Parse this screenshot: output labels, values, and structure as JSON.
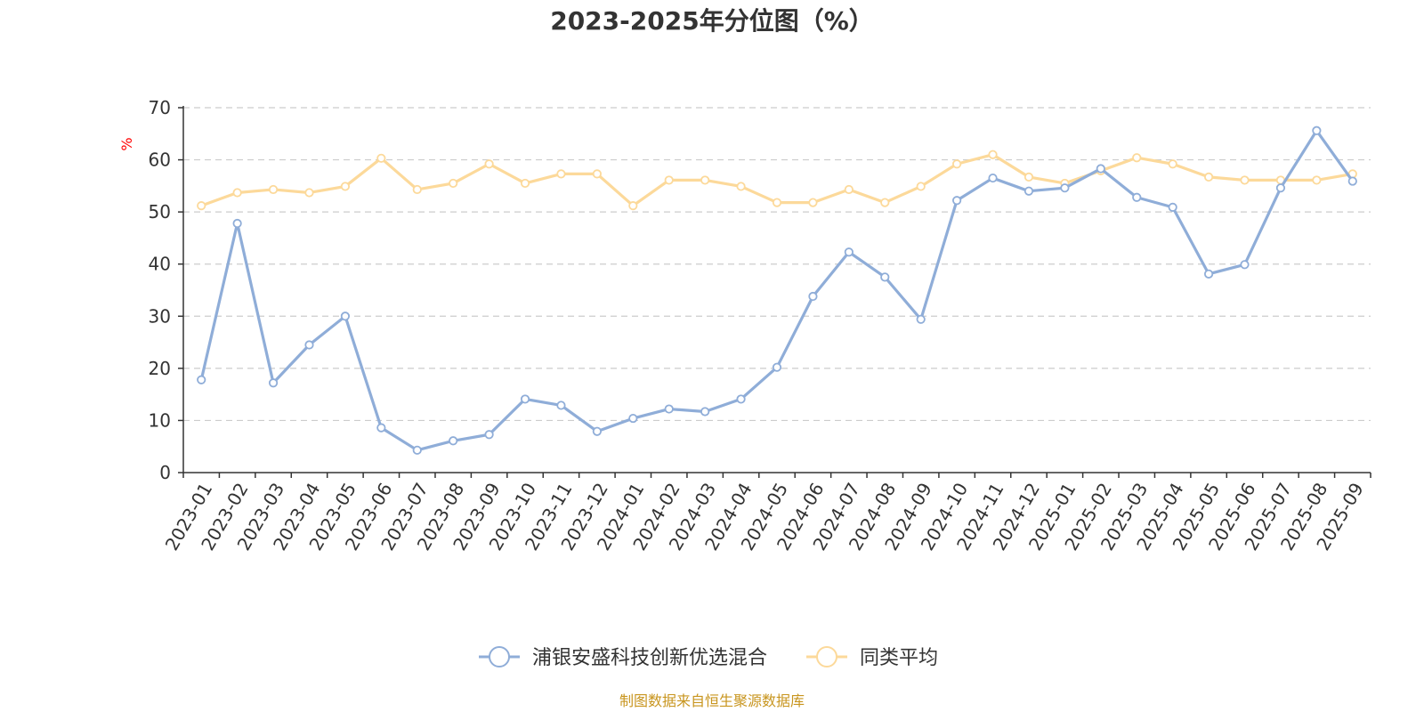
{
  "colors": {
    "series_1": "#8fadd8",
    "series_2": "#fcd99a",
    "grid": "#cccccc",
    "axis": "#333333",
    "ylabel": "#ff0000",
    "source": "#c8951e"
  },
  "source_text": "制图数据来自恒生聚源数据库",
  "chart_data": {
    "type": "line",
    "title": "2023-2025年分位图（%）",
    "xlabel": "",
    "ylabel": "%",
    "ylim": [
      0,
      70
    ],
    "yticks": [
      0,
      10,
      20,
      30,
      40,
      50,
      60,
      70
    ],
    "grid": true,
    "legend_position": "bottom-center",
    "categories": [
      "2023-01",
      "2023-02",
      "2023-03",
      "2023-04",
      "2023-05",
      "2023-06",
      "2023-07",
      "2023-08",
      "2023-09",
      "2023-10",
      "2023-11",
      "2023-12",
      "2024-01",
      "2024-02",
      "2024-03",
      "2024-04",
      "2024-05",
      "2024-06",
      "2024-07",
      "2024-08",
      "2024-09",
      "2024-10",
      "2024-11",
      "2024-12",
      "2025-01",
      "2025-02",
      "2025-03",
      "2025-04",
      "2025-05",
      "2025-06",
      "2025-07",
      "2025-08",
      "2025-09"
    ],
    "series": [
      {
        "name": "浦银安盛科技创新优选混合",
        "values": [
          17.8,
          47.8,
          17.2,
          24.5,
          30.0,
          8.6,
          4.3,
          6.1,
          7.3,
          14.1,
          12.9,
          7.9,
          10.4,
          12.2,
          11.7,
          14.1,
          20.2,
          33.8,
          42.3,
          37.5,
          29.4,
          52.2,
          56.5,
          54.0,
          54.6,
          58.3,
          52.8,
          50.9,
          38.1,
          39.9,
          54.6,
          65.6,
          55.9
        ]
      },
      {
        "name": "同类平均",
        "values": [
          51.2,
          53.7,
          54.3,
          53.7,
          54.9,
          60.3,
          54.3,
          55.5,
          59.2,
          55.5,
          57.3,
          57.3,
          51.2,
          56.1,
          56.1,
          54.9,
          51.8,
          51.8,
          54.3,
          51.8,
          54.9,
          59.2,
          61.0,
          56.7,
          55.5,
          57.9,
          60.4,
          59.2,
          56.7,
          56.1,
          56.1,
          56.1,
          57.3
        ]
      }
    ]
  }
}
